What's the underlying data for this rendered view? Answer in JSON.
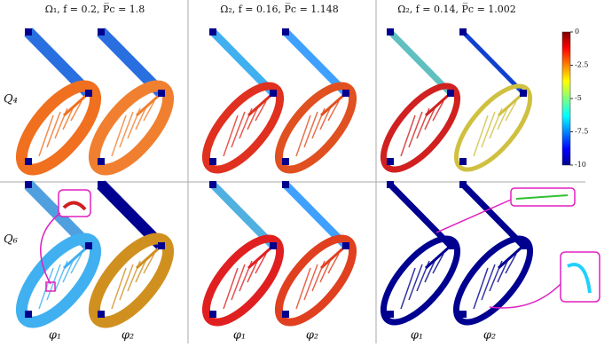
{
  "figure": {
    "columns": [
      "Ω₁, f = 0.2, P̅c = 1.8",
      "Ω₂, f = 0.16, P̅c = 1.148",
      "Ω₂, f = 0.14, P̅c = 1.002"
    ],
    "rows": [
      "Q₄",
      "Q₆"
    ],
    "panel_labels": [
      "φ₁",
      "φ₂",
      "φ₁",
      "φ₂",
      "φ₁",
      "φ₂"
    ],
    "colorbar": {
      "lim": [
        -10,
        0
      ],
      "ticks": [
        0,
        -2.5,
        -5,
        -7.5,
        -10
      ]
    }
  }
}
